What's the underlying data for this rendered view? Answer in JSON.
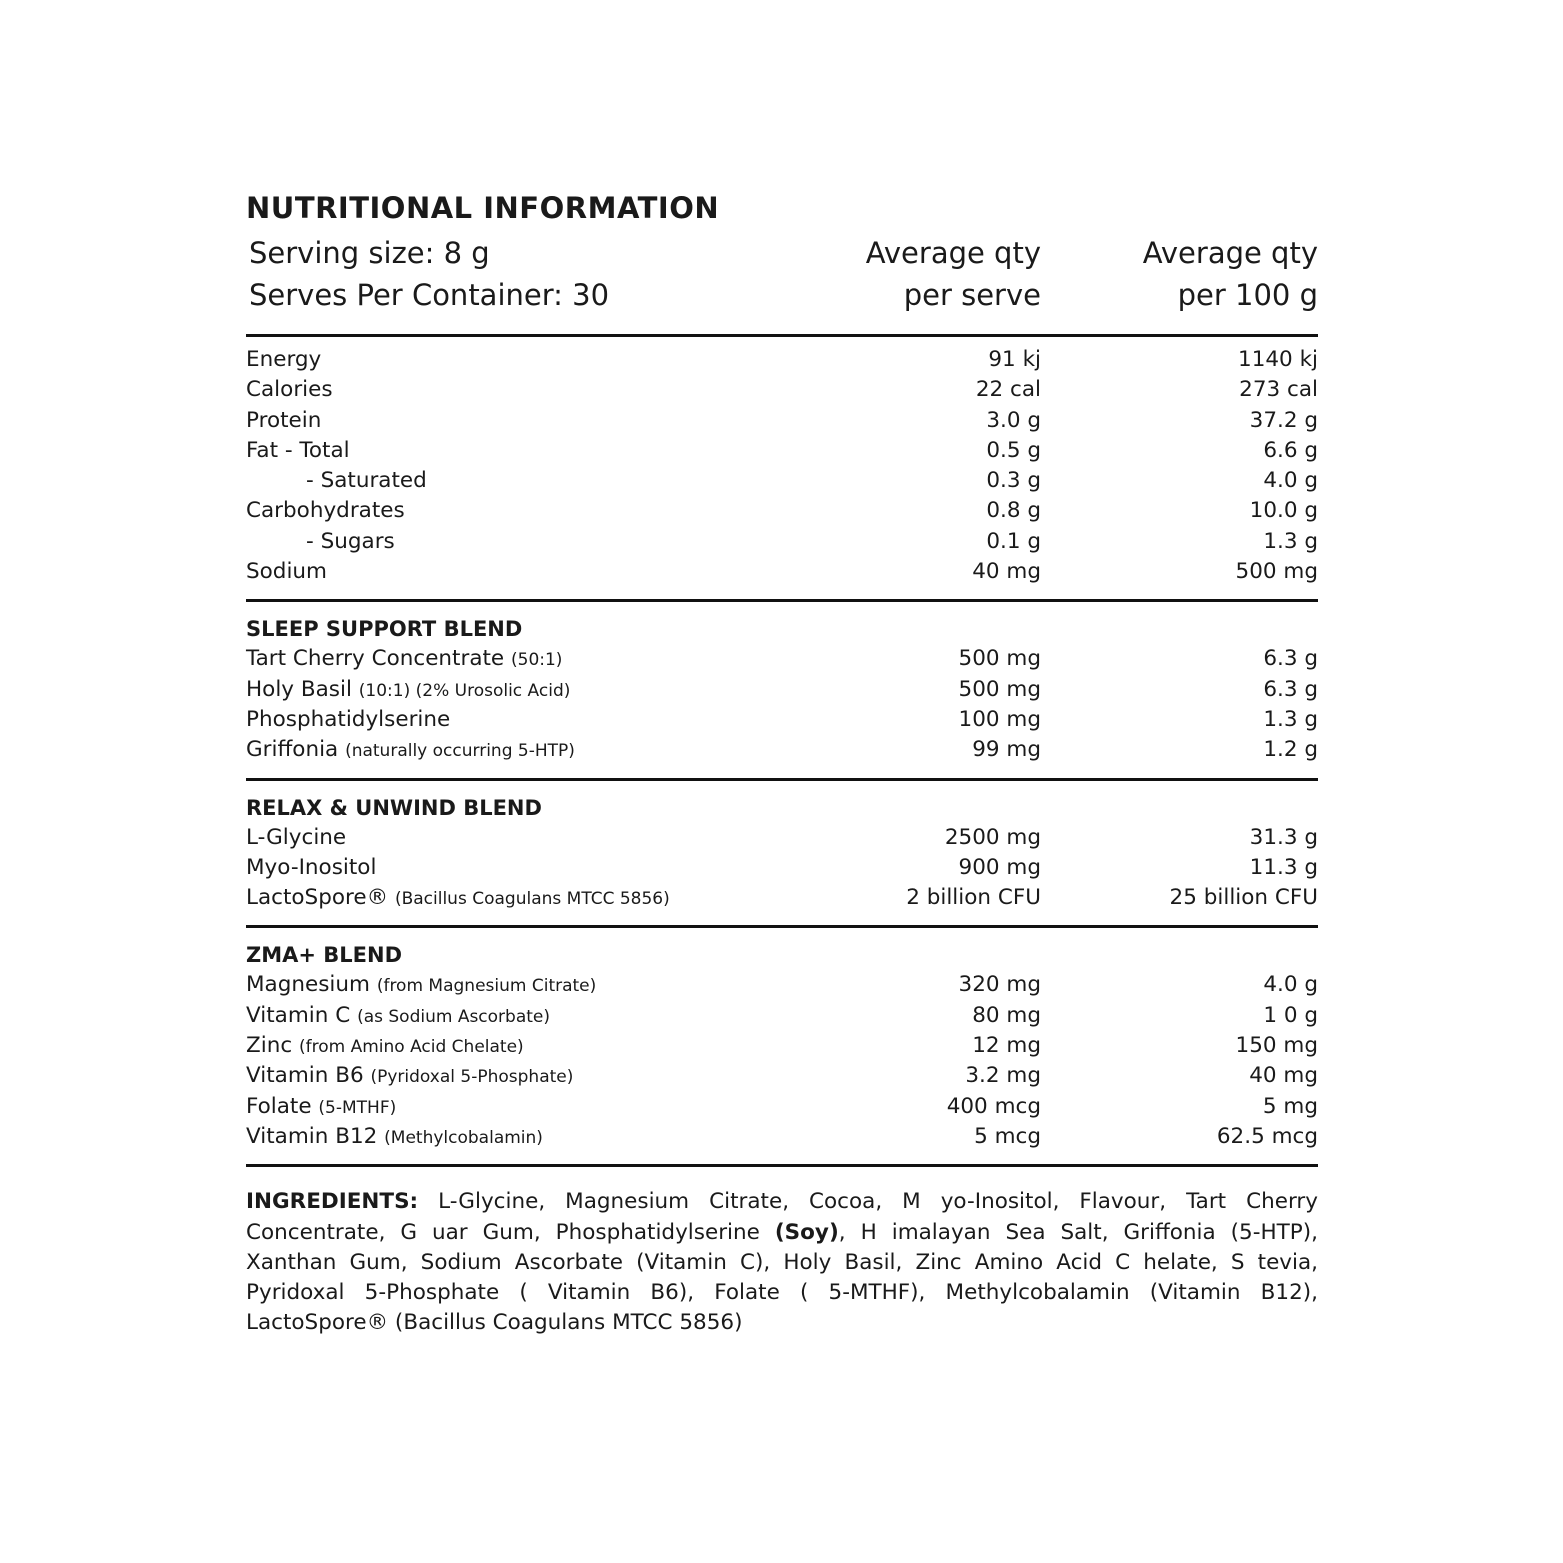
{
  "title": "NUTRITIONAL INFORMATION",
  "header": {
    "serving_size": "Serving size: 8 g",
    "serves": "Serves Per Container: 30",
    "col1_line1": "Average qty",
    "col1_line2": "per serve",
    "col2_line1": "Average qty",
    "col2_line2": "per 100 g"
  },
  "nutrition": [
    {
      "name": "Energy",
      "note": "",
      "per_serve": "91 kj",
      "per_100g": "1140 kj"
    },
    {
      "name": "Calories",
      "note": "",
      "per_serve": "22 cal",
      "per_100g": "273 cal"
    },
    {
      "name": "Protein",
      "note": "",
      "per_serve": "3.0 g",
      "per_100g": "37.2 g"
    },
    {
      "name": "Fat  - Total",
      "note": "",
      "per_serve": "0.5 g",
      "per_100g": "6.6 g"
    },
    {
      "name": "- Saturated",
      "note": "",
      "per_serve": "0.3 g",
      "per_100g": "4.0 g",
      "indent": true
    },
    {
      "name": "Carbohydrates",
      "note": "",
      "per_serve": "0.8 g",
      "per_100g": "10.0 g"
    },
    {
      "name": "- Sugars",
      "note": "",
      "per_serve": "0.1 g",
      "per_100g": "1.3 g",
      "indent": true
    },
    {
      "name": "Sodium",
      "note": "",
      "per_serve": "40 mg",
      "per_100g": "500 mg"
    }
  ],
  "blends": [
    {
      "title": "SLEEP SUPPORT BLEND",
      "rows": [
        {
          "name": "Tart Cherry Concentrate",
          "note": "(50:1)",
          "per_serve": "500 mg",
          "per_100g": "6.3 g"
        },
        {
          "name": "Holy Basil",
          "note": "(10:1) (2% Urosolic Acid)",
          "per_serve": "500 mg",
          "per_100g": "6.3 g"
        },
        {
          "name": "Phosphatidylserine",
          "note": "",
          "per_serve": "100 mg",
          "per_100g": "1.3 g"
        },
        {
          "name": "Griffonia",
          "note": "(naturally occurring 5-HTP)",
          "per_serve": "99 mg",
          "per_100g": "1.2 g"
        }
      ]
    },
    {
      "title": "RELAX & UNWIND BLEND",
      "rows": [
        {
          "name": "L-Glycine",
          "note": "",
          "per_serve": "2500 mg",
          "per_100g": "31.3 g"
        },
        {
          "name": "Myo-Inositol",
          "note": "",
          "per_serve": "900 mg",
          "per_100g": "11.3 g"
        },
        {
          "name": "LactoSpore®",
          "note": "(Bacillus Coagulans MTCC 5856)",
          "per_serve": "2 billion CFU",
          "per_100g": "25 billion CFU"
        }
      ]
    },
    {
      "title": "ZMA+ BLEND",
      "rows": [
        {
          "name": "Magnesium",
          "note": "(from Magnesium Citrate)",
          "per_serve": "320 mg",
          "per_100g": "4.0 g"
        },
        {
          "name": "Vitamin C",
          "note": "(as Sodium Ascorbate)",
          "per_serve": "80 mg",
          "per_100g": "1 0 g"
        },
        {
          "name": "Zinc",
          "note": "(from Amino Acid Chelate)",
          "per_serve": "12 mg",
          "per_100g": "150 mg"
        },
        {
          "name": "Vitamin B6",
          "note": "(Pyridoxal 5-Phosphate)",
          "per_serve": "3.2 mg",
          "per_100g": "40 mg"
        },
        {
          "name": "Folate",
          "note": "(5-MTHF)",
          "per_serve": "400 mcg",
          "per_100g": "5 mg"
        },
        {
          "name": "Vitamin B12",
          "note": "(Methylcobalamin)",
          "per_serve": "5 mcg",
          "per_100g": "62.5 mcg"
        }
      ]
    }
  ],
  "ingredients": {
    "label": "INGREDIENTS:",
    "part1": " L-Glycine, Magnesium Citrate, Cocoa, M yo-Inositol, Flavour, Tart Cherry Concentrate, G uar Gum, Phosphatidylserine ",
    "allergen": "(Soy)",
    "part2": ", H imalayan Sea Salt, Griffonia (5-HTP), Xanthan Gum, Sodium Ascorbate (Vitamin C), Holy Basil, Zinc Amino Acid C helate, S tevia, Pyridoxal 5-Phosphate ( Vitamin B6), Folate ( 5-MTHF), Methylcobalamin (Vitamin B12), LactoSpore® (Bacillus Coagulans MTCC 5856)"
  }
}
